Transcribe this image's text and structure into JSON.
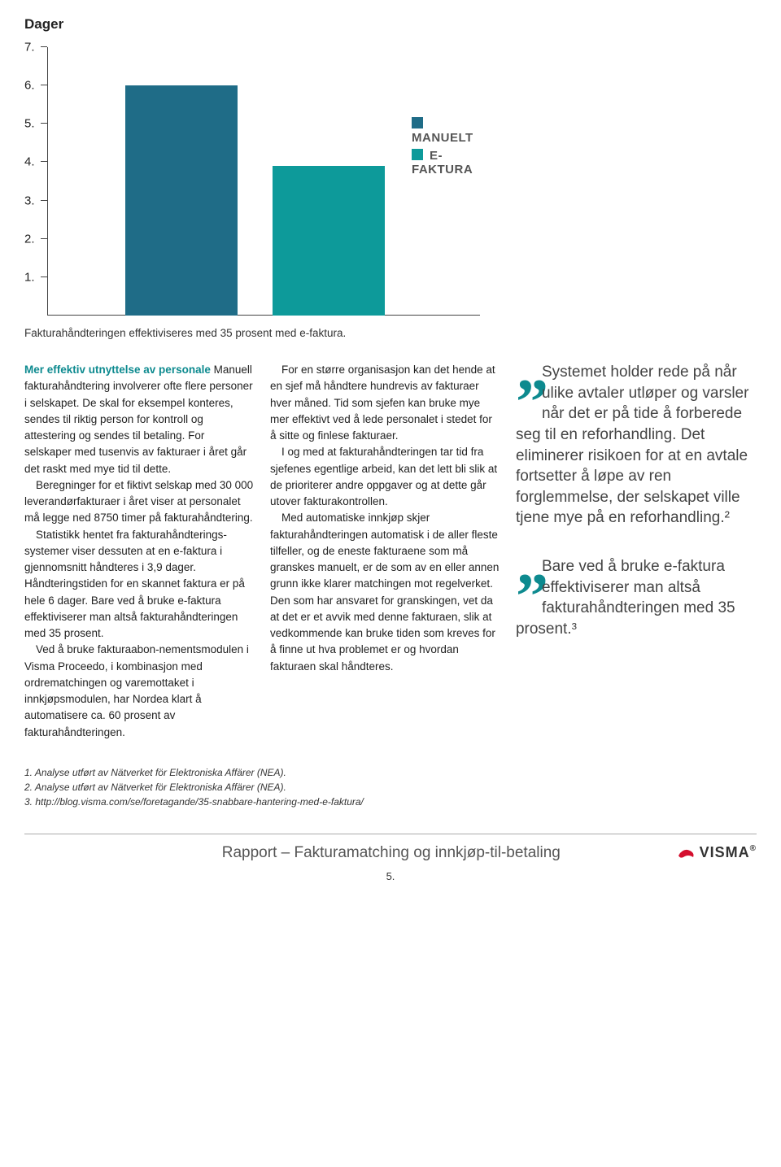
{
  "chart": {
    "type": "bar",
    "title": "Dager",
    "y_ticks": [
      "1.",
      "2.",
      "3.",
      "4.",
      "5.",
      "6.",
      "7."
    ],
    "y_max": 7,
    "axis_color": "#444444",
    "bars": [
      {
        "value": 6.0,
        "color": "#1f6c87",
        "left_pct": 18,
        "width_pct": 26
      },
      {
        "value": 3.9,
        "color": "#0d9a9a",
        "left_pct": 52,
        "width_pct": 26
      }
    ],
    "legend": [
      {
        "label": "MANUELT",
        "color": "#1f6c87",
        "top_pct": 26
      },
      {
        "label": "E-FAKTURA",
        "color": "#0d9a9a",
        "top_pct": 38
      }
    ],
    "caption": "Fakturahåndteringen effektiviseres med 35 prosent med e-faktura."
  },
  "body": {
    "col1_heading": "Mer effektiv utnyttelse av personale",
    "col1_p1": " Manuell fakturahåndtering involverer ofte flere personer i selskapet. De skal for eksempel konteres, sendes til riktig person for kontroll og attestering og sendes til betaling. For selskaper med tusenvis av fakturaer i året går det raskt med mye tid til dette.",
    "col1_p2": "Beregninger for et fiktivt selskap med 30 000 leverandørfakturaer i året viser at personalet må legge ned 8750 timer på fakturahåndtering.",
    "col1_p3": "Statistikk hentet fra fakturahåndterings-systemer viser dessuten at en e-faktura i gjennomsnitt håndteres i 3,9 dager. Håndteringstiden for en skannet faktura er på hele 6 dager. Bare ved å bruke e-faktura effektiviserer man altså fakturahåndteringen med 35 prosent.",
    "col1_p4": "Ved å bruke fakturaabon-nementsmodulen i Visma Proceedo, i kombinasjon med ordrematchingen og varemottaket i innkjøpsmodulen, har Nordea klart å automatisere ca. 60 prosent av fakturahåndteringen.",
    "col2_p1": "For en større organisasjon kan det hende at en sjef må håndtere hundrevis av fakturaer hver måned. Tid som sjefen kan bruke mye mer effektivt ved å lede personalet i stedet for å sitte og finlese fakturaer.",
    "col2_p2": "I og med at fakturahåndteringen tar tid fra sjefenes egentlige arbeid, kan det lett bli slik at de prioriterer andre oppgaver og at dette går utover fakturakontrollen.",
    "col2_p3": "Med automatiske innkjøp skjer fakturahåndteringen automatisk i de aller fleste tilfeller, og de eneste fakturaene som må granskes manuelt, er de som av en eller annen grunn ikke klarer matchingen mot regelverket. Den som har ansvaret for granskingen, vet da at det er et avvik med denne fakturaen, slik at vedkommende kan bruke tiden som kreves for å finne ut hva problemet er og hvordan fakturaen skal håndteres.",
    "quote1": "Systemet holder rede på når ulike avtaler utløper og varsler når det er på tide å forberede seg til en reforhandling. Det eliminerer risikoen for at en avtale fortsetter å løpe av ren forglemmelse, der selskapet ville tjene mye på en reforhandling.²",
    "quote2": "Bare ved å bruke e-faktura effektiviserer man altså fakturahåndteringen med 35 prosent.³"
  },
  "footnotes": {
    "f1": "1. Analyse utført av Nätverket för Elektroniska Affärer (NEA).",
    "f2": "2. Analyse utført av Nätverket för Elektroniska Affärer (NEA).",
    "f3": "3. http://blog.visma.com/se/foretagande/35-snabbare-hantering-med-e-faktura/"
  },
  "footer": {
    "title": "Rapport – Fakturamatching og innkjøp-til-betaling",
    "logo": "VISMA",
    "page": "5.",
    "logo_color": "#d40f2e"
  }
}
